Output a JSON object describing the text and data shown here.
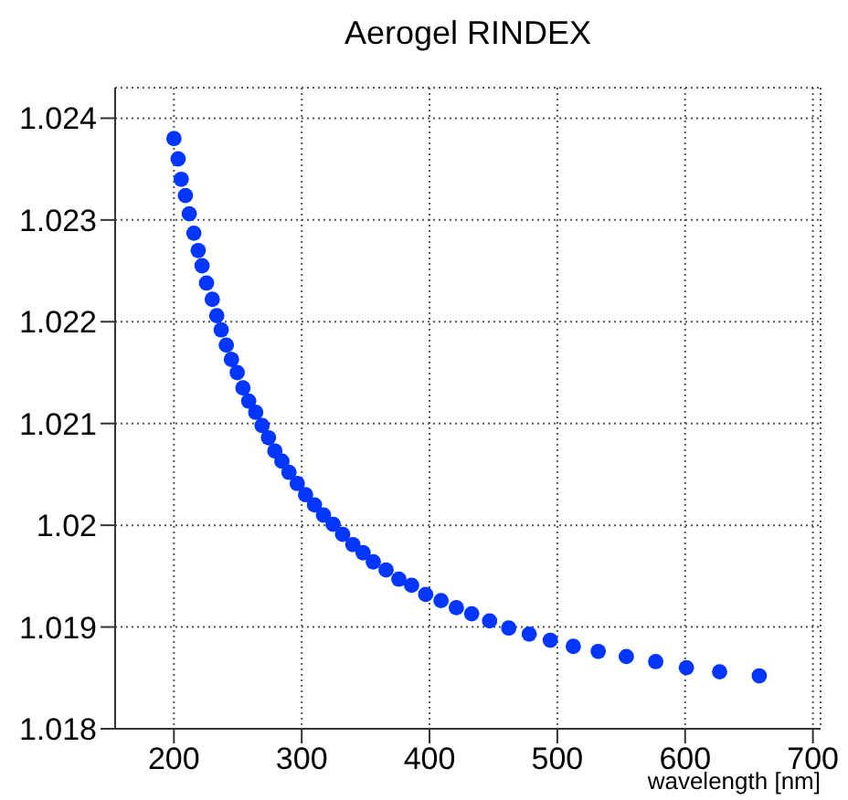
{
  "chart_data": {
    "type": "scatter",
    "title": "Aerogel RINDEX",
    "xlabel": "wavelength [nm]",
    "marker": "circle",
    "grid": true,
    "legend": false,
    "xlim": [
      154,
      706
    ],
    "xticks": [
      200,
      300,
      400,
      500,
      600,
      700
    ],
    "ylim": [
      1.018,
      1.0243
    ],
    "yticks": [
      1.018,
      1.019,
      1.02,
      1.021,
      1.022,
      1.023,
      1.024
    ],
    "x": [
      200,
      203.3,
      205.7,
      209,
      212,
      215.6,
      219,
      222,
      225.5,
      230,
      233.5,
      237,
      241,
      245,
      249.5,
      254,
      258.5,
      264,
      269,
      274,
      279,
      284.5,
      290,
      296.5,
      303,
      310,
      317,
      324.5,
      332,
      340,
      348,
      356,
      366,
      376,
      386,
      397,
      409,
      421,
      433,
      447,
      462,
      478,
      494.5,
      512.5,
      532,
      554,
      577,
      601,
      627,
      658
    ],
    "series": [
      {
        "color": "#0036ff",
        "values": [
          1.0238,
          1.0236,
          1.0234,
          1.02324,
          1.02306,
          1.02287,
          1.0227,
          1.02255,
          1.02238,
          1.02222,
          1.02206,
          1.02192,
          1.02177,
          1.02163,
          1.0215,
          1.02135,
          1.02122,
          1.02111,
          1.02098,
          1.02086,
          1.02073,
          1.02063,
          1.02052,
          1.02041,
          1.0203,
          1.0202,
          1.0201,
          1.02001,
          1.01991,
          1.01981,
          1.01973,
          1.01964,
          1.01956,
          1.01947,
          1.01941,
          1.01932,
          1.01926,
          1.01919,
          1.01913,
          1.01906,
          1.01899,
          1.01893,
          1.01887,
          1.01881,
          1.01876,
          1.01871,
          1.01866,
          1.0186,
          1.01856,
          1.01852
        ]
      }
    ]
  }
}
